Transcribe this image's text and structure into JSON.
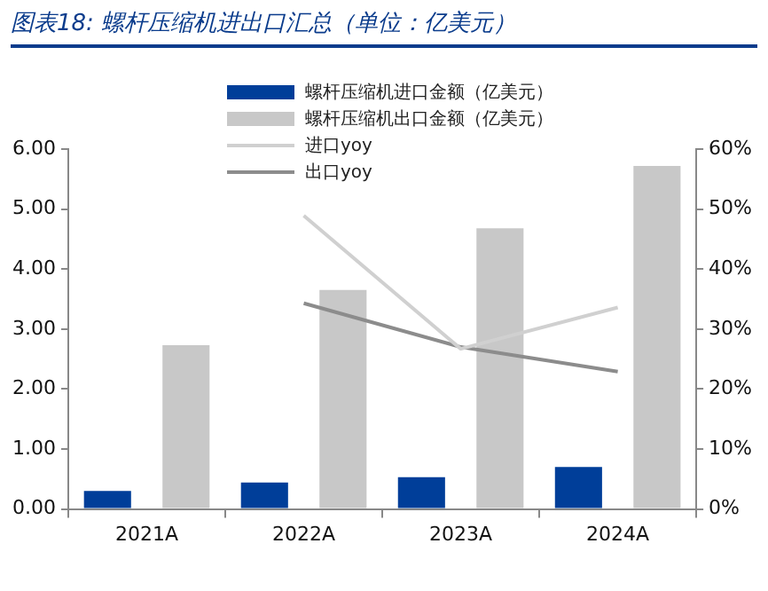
{
  "chart_data": {
    "type": "bar",
    "title": "图表18:  螺杆压缩机进出口汇总（单位：亿美元）",
    "categories": [
      "2021A",
      "2022A",
      "2023A",
      "2024A"
    ],
    "series": [
      {
        "name": "螺杆压缩机进口金额（亿美元）",
        "color": "#003e99",
        "values": [
          0.3,
          0.44,
          0.53,
          0.7
        ]
      },
      {
        "name": "螺杆压缩机出口金额（亿美元）",
        "color": "#c8c8c8",
        "values": [
          2.73,
          3.65,
          4.68,
          5.72
        ]
      },
      {
        "name": "进口yoy",
        "type": "line",
        "axis": "y2",
        "color": "#d0d0d0",
        "values": [
          null,
          48.9,
          26.7,
          33.6
        ]
      },
      {
        "name": "出口yoy",
        "type": "line",
        "axis": "y2",
        "color": "#8c8c8c",
        "values": [
          null,
          34.3,
          27.0,
          22.9
        ]
      }
    ],
    "ylim": [
      0,
      6
    ],
    "yticks": [
      {
        "value": 0,
        "label": "0.00"
      },
      {
        "value": 1,
        "label": "1.00"
      },
      {
        "value": 2,
        "label": "2.00"
      },
      {
        "value": 3,
        "label": "3.00"
      },
      {
        "value": 4,
        "label": "4.00"
      },
      {
        "value": 5,
        "label": "5.00"
      },
      {
        "value": 6,
        "label": "6.00"
      }
    ],
    "y2lim": [
      0,
      60
    ],
    "y2ticks": [
      {
        "value": 0,
        "label": "0%"
      },
      {
        "value": 10,
        "label": "10%"
      },
      {
        "value": 20,
        "label": "20%"
      },
      {
        "value": 30,
        "label": "30%"
      },
      {
        "value": 40,
        "label": "40%"
      },
      {
        "value": 50,
        "label": "50%"
      },
      {
        "value": 60,
        "label": "60%"
      }
    ],
    "grid": false,
    "legend": "top",
    "marker": "none",
    "line_style": "solid"
  }
}
